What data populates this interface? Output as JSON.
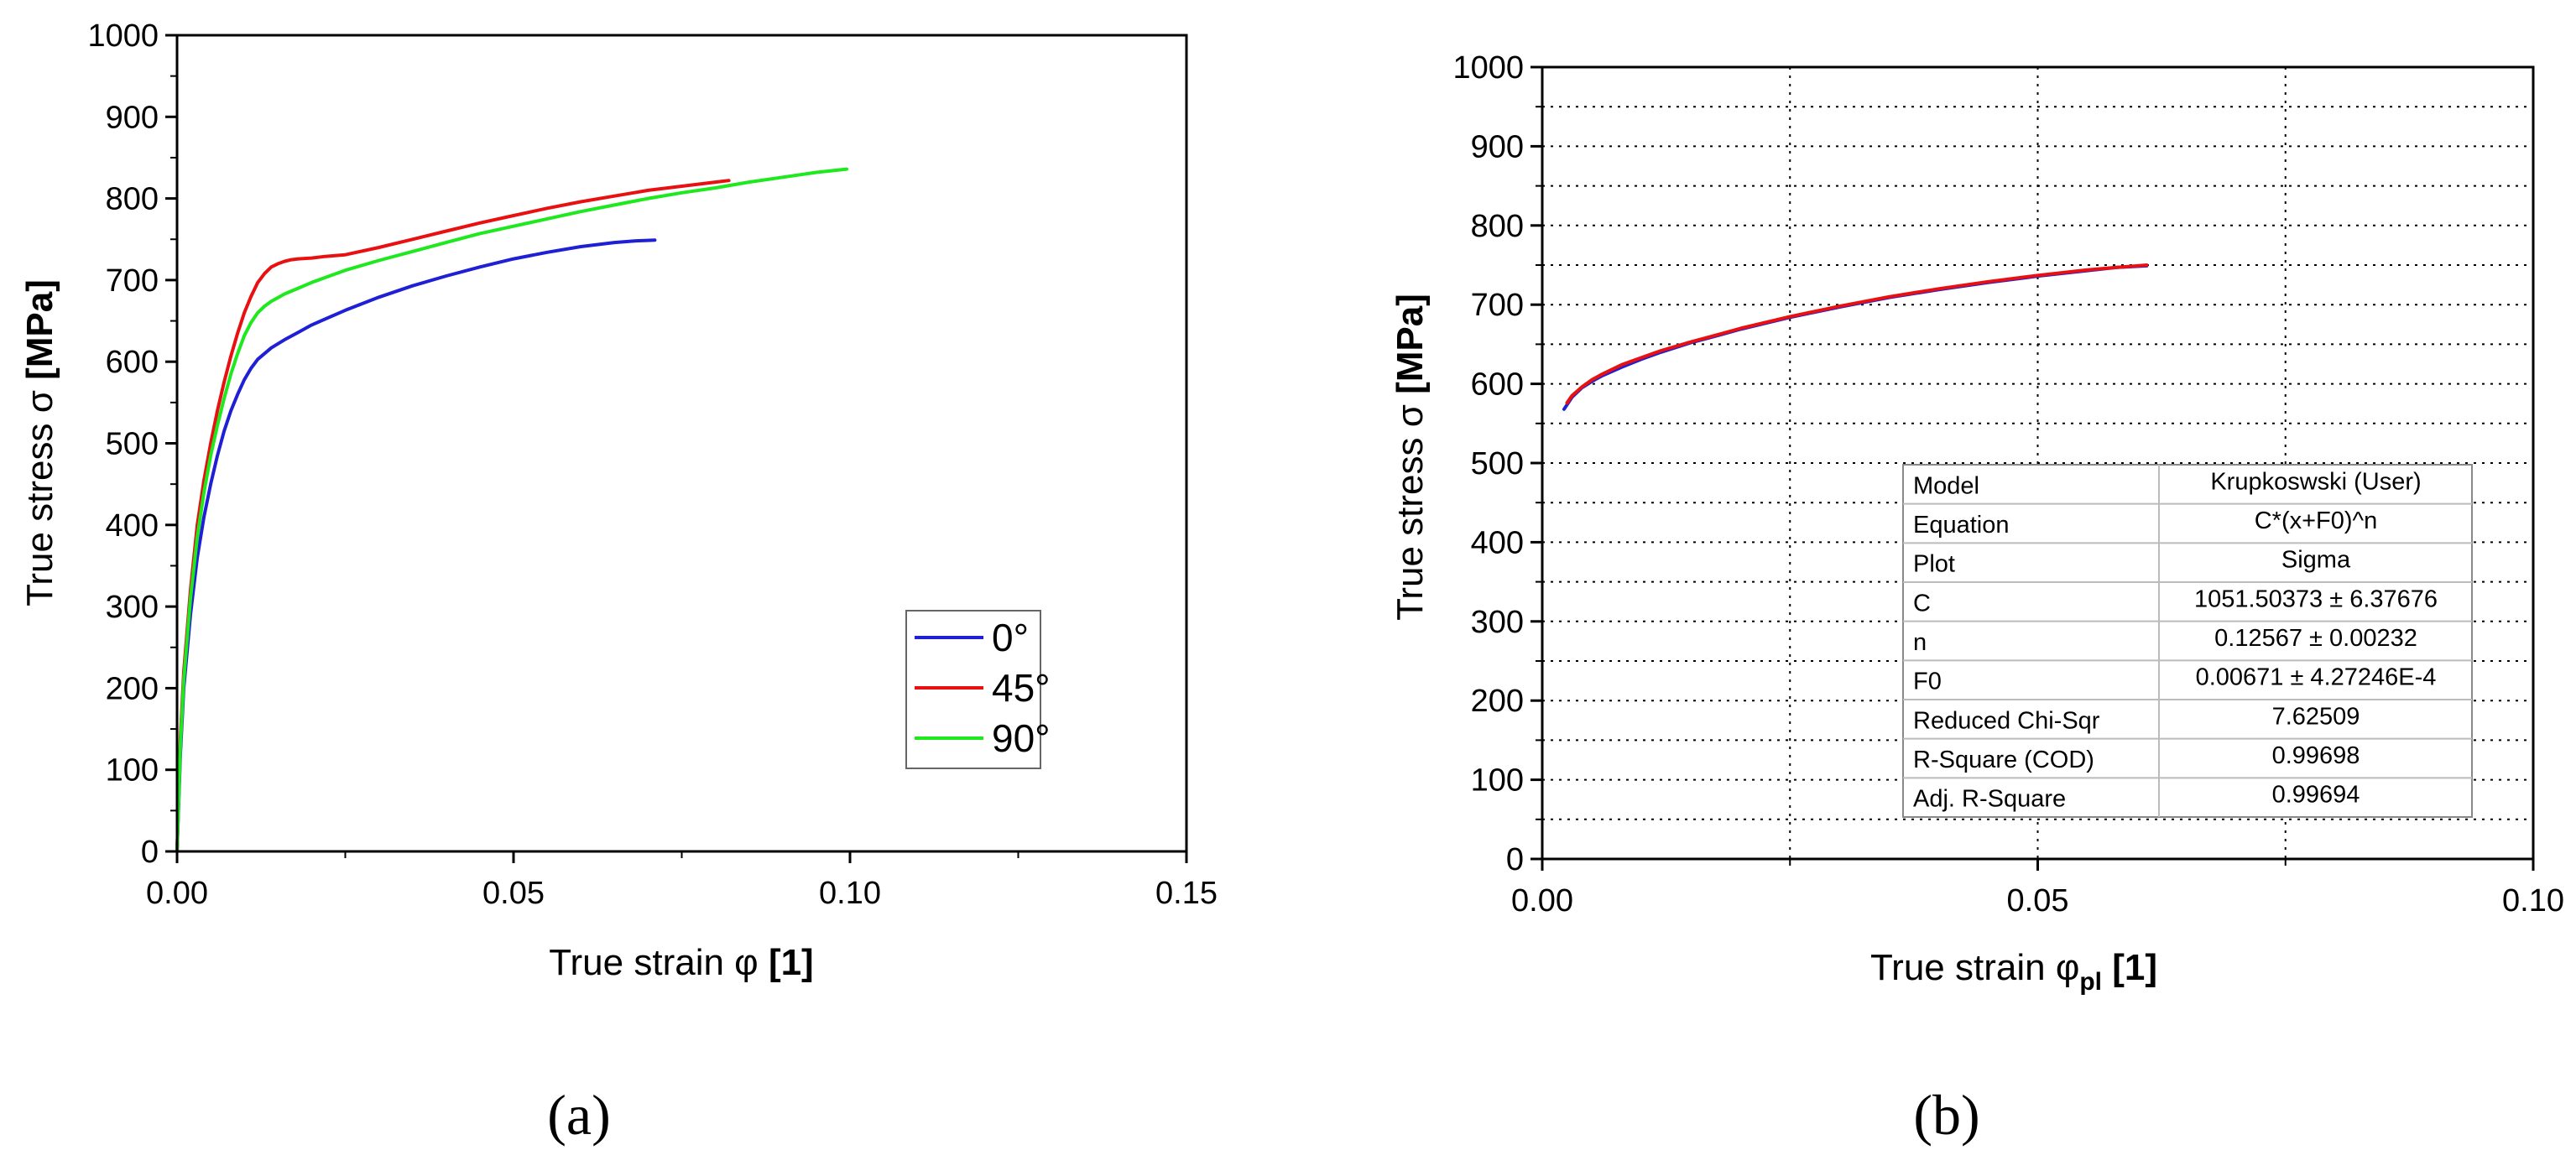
{
  "chart_data": [
    {
      "panel_label": "(a)",
      "type": "line",
      "xlabel": "True strain φ",
      "xlabel_unit": "[1]",
      "ylabel": "True stress σ",
      "ylabel_unit": "[MPa]",
      "xlim": [
        0,
        0.15
      ],
      "ylim": [
        0,
        1000
      ],
      "xticks": [
        "0.00",
        "0.05",
        "0.10",
        "0.15"
      ],
      "xtick_values": [
        0,
        0.05,
        0.1,
        0.15
      ],
      "yticks": [
        "0",
        "100",
        "200",
        "300",
        "400",
        "500",
        "600",
        "700",
        "800",
        "900",
        "1000"
      ],
      "ytick_values": [
        0,
        100,
        200,
        300,
        400,
        500,
        600,
        700,
        800,
        900,
        1000
      ],
      "grid": false,
      "legend_position": "bottom-right",
      "series": [
        {
          "name": "0°",
          "color": "#1f1fd6",
          "x": [
            0,
            0.0005,
            0.001,
            0.002,
            0.003,
            0.004,
            0.005,
            0.006,
            0.007,
            0.008,
            0.009,
            0.01,
            0.011,
            0.012,
            0.014,
            0.016,
            0.018,
            0.02,
            0.025,
            0.03,
            0.035,
            0.04,
            0.045,
            0.05,
            0.055,
            0.06,
            0.065,
            0.068,
            0.071
          ],
          "y": [
            0,
            120,
            200,
            290,
            360,
            410,
            450,
            485,
            515,
            540,
            560,
            578,
            592,
            603,
            617,
            627,
            636,
            645,
            663,
            679,
            693,
            705,
            716,
            726,
            734,
            741,
            746,
            748,
            749
          ]
        },
        {
          "name": "45°",
          "color": "#e81010",
          "x": [
            0,
            0.0005,
            0.001,
            0.002,
            0.003,
            0.004,
            0.005,
            0.006,
            0.007,
            0.008,
            0.009,
            0.01,
            0.011,
            0.012,
            0.013,
            0.014,
            0.015,
            0.016,
            0.017,
            0.018,
            0.02,
            0.022,
            0.025,
            0.03,
            0.035,
            0.04,
            0.045,
            0.05,
            0.055,
            0.06,
            0.065,
            0.07,
            0.075,
            0.08,
            0.082
          ],
          "y": [
            0,
            140,
            220,
            320,
            400,
            455,
            500,
            540,
            575,
            607,
            635,
            660,
            680,
            697,
            708,
            716,
            720,
            723,
            725,
            726,
            727,
            729,
            731,
            740,
            750,
            760,
            770,
            779,
            788,
            796,
            803,
            810,
            815,
            820,
            822
          ]
        },
        {
          "name": "90°",
          "color": "#1ee81e",
          "x": [
            0,
            0.0005,
            0.001,
            0.002,
            0.003,
            0.004,
            0.005,
            0.006,
            0.007,
            0.008,
            0.009,
            0.01,
            0.011,
            0.012,
            0.013,
            0.014,
            0.016,
            0.018,
            0.02,
            0.025,
            0.03,
            0.035,
            0.04,
            0.045,
            0.05,
            0.055,
            0.06,
            0.065,
            0.07,
            0.075,
            0.08,
            0.085,
            0.09,
            0.095,
            0.0995
          ],
          "y": [
            0,
            130,
            210,
            310,
            385,
            440,
            485,
            522,
            555,
            585,
            610,
            632,
            648,
            660,
            668,
            674,
            683,
            690,
            697,
            712,
            724,
            735,
            746,
            757,
            766,
            775,
            784,
            792,
            800,
            807,
            813,
            820,
            826,
            832,
            836
          ]
        }
      ]
    },
    {
      "panel_label": "(b)",
      "type": "line",
      "xlabel": "True strain φ",
      "xlabel_sub": "pl",
      "xlabel_unit": "[1]",
      "ylabel": "True stress σ",
      "ylabel_unit": "[MPa]",
      "xlim": [
        0,
        0.1
      ],
      "ylim": [
        0,
        1000
      ],
      "xticks": [
        "0.00",
        "0.05",
        "0.10"
      ],
      "xtick_values": [
        0,
        0.05,
        0.1
      ],
      "yticks": [
        "0",
        "100",
        "200",
        "300",
        "400",
        "500",
        "600",
        "700",
        "800",
        "900",
        "1000"
      ],
      "ytick_values": [
        0,
        100,
        200,
        300,
        400,
        500,
        600,
        700,
        800,
        900,
        1000
      ],
      "grid": true,
      "series": [
        {
          "color": "#1f1fd6",
          "x": [
            0.0022,
            0.003,
            0.004,
            0.005,
            0.006,
            0.008,
            0.01,
            0.012,
            0.015,
            0.018,
            0.02,
            0.025,
            0.03,
            0.035,
            0.04,
            0.045,
            0.05,
            0.055,
            0.058,
            0.061
          ],
          "y": [
            568,
            583,
            595,
            603,
            610,
            621,
            631,
            640,
            652,
            662,
            669,
            684,
            697,
            709,
            719,
            728,
            736,
            743,
            747,
            749
          ]
        },
        {
          "color": "#e81010",
          "x": [
            0.0025,
            0.003,
            0.004,
            0.005,
            0.006,
            0.008,
            0.01,
            0.012,
            0.015,
            0.018,
            0.02,
            0.025,
            0.03,
            0.035,
            0.04,
            0.045,
            0.05,
            0.055,
            0.058,
            0.061
          ],
          "y": [
            576,
            585,
            596,
            605,
            612,
            624,
            633,
            642,
            653,
            663,
            670,
            685,
            698,
            710,
            720,
            729,
            737,
            744,
            747,
            750
          ]
        }
      ],
      "fit_table": [
        [
          "Model",
          "Krupkoswski (User)"
        ],
        [
          "Equation",
          "C*(x+F0)^n"
        ],
        [
          "Plot",
          "Sigma"
        ],
        [
          "C",
          "1051.50373 ± 6.37676"
        ],
        [
          "n",
          "0.12567 ± 0.00232"
        ],
        [
          "F0",
          "0.00671 ± 4.27246E-4"
        ],
        [
          "Reduced Chi-Sqr",
          "7.62509"
        ],
        [
          "R-Square (COD)",
          "0.99698"
        ],
        [
          "Adj. R-Square",
          "0.99694"
        ]
      ]
    }
  ]
}
